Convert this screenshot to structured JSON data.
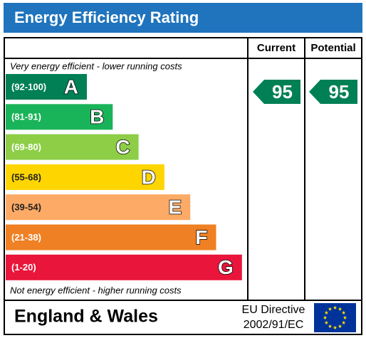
{
  "header": {
    "title": "Energy Efficiency Rating"
  },
  "columns": [
    "Current",
    "Potential"
  ],
  "top_note": "Very energy efficient - lower running costs",
  "bottom_note": "Not energy efficient - higher running costs",
  "bands": [
    {
      "range": "(92-100)",
      "letter": "A",
      "color": "#008054"
    },
    {
      "range": "(81-91)",
      "letter": "B",
      "color": "#19b459"
    },
    {
      "range": "(69-80)",
      "letter": "C",
      "color": "#8dce46"
    },
    {
      "range": "(55-68)",
      "letter": "D",
      "color": "#ffd500"
    },
    {
      "range": "(39-54)",
      "letter": "E",
      "color": "#fcaa65"
    },
    {
      "range": "(21-38)",
      "letter": "F",
      "color": "#ef8023"
    },
    {
      "range": "(1-20)",
      "letter": "G",
      "color": "#e9153b"
    }
  ],
  "current": {
    "value": 95,
    "color": "#008054"
  },
  "potential": {
    "value": 95,
    "color": "#008054"
  },
  "footer": {
    "region": "England & Wales",
    "directive": [
      "EU Directive",
      "2002/91/EC"
    ]
  }
}
